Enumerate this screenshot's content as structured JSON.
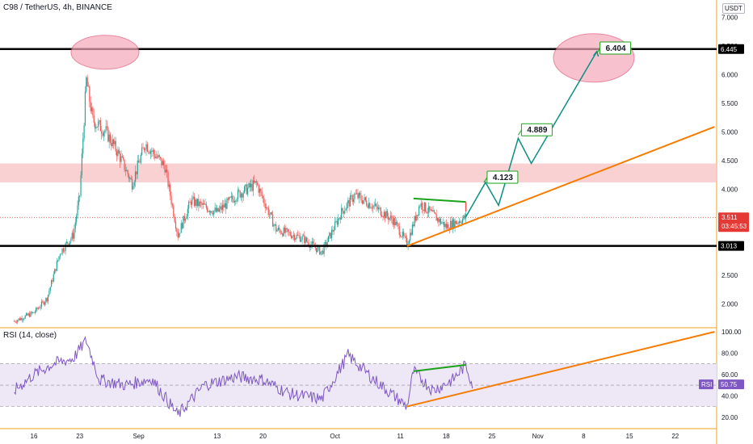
{
  "header": {
    "title": "C98 / TetherUS, 4h, BINANCE",
    "currency": "USDT"
  },
  "rsi": {
    "title": "RSI (14, close)",
    "badge_label": "RSI",
    "badge_value": "50.75"
  },
  "price_axis": {
    "ticks": [
      "7.000",
      "6.500",
      "6.000",
      "5.500",
      "5.000",
      "4.500",
      "4.000",
      "3.500",
      "3.000",
      "2.500",
      "2.000"
    ],
    "ylim": [
      1.6,
      7.3
    ]
  },
  "rsi_axis": {
    "ticks": [
      "100.00",
      "80.00",
      "60.00",
      "40.00",
      "20.00"
    ],
    "ylim": [
      10,
      103
    ]
  },
  "time_axis": {
    "labels": [
      "16",
      "23",
      "Sep",
      "13",
      "20",
      "Oct",
      "11",
      "18",
      "25",
      "Nov",
      "8",
      "15",
      "22"
    ]
  },
  "colors": {
    "up": "#26a69a",
    "down": "#ef5350",
    "level": "#000000",
    "trend": "#f57c00",
    "projection": "#0b8f83",
    "target": "#1ba21b",
    "zone": "#f8c6c8",
    "rsi_line": "#7e57c2",
    "rsi_band": "#ede7f6",
    "price_badge": "#e53935"
  },
  "chart_data": {
    "type": "candlestick",
    "title": "C98 / TetherUS, 4h, BINANCE",
    "price_levels": [
      {
        "label": "6.445",
        "value": 6.445
      },
      {
        "label": "3.013",
        "value": 3.013
      }
    ],
    "current_price": {
      "label": "3.511",
      "value": 3.511,
      "countdown": "03:45:53"
    },
    "resistance_zone": [
      4.12,
      4.45
    ],
    "projection_path": [
      {
        "x": "Oct 21",
        "y": 3.52
      },
      {
        "x": "Oct 24",
        "y": 4.12
      },
      {
        "x": "Oct 26",
        "y": 3.72
      },
      {
        "x": "Oct 29",
        "y": 4.89
      },
      {
        "x": "Oct 31",
        "y": 4.45
      },
      {
        "x": "Nov 10",
        "y": 6.4
      }
    ],
    "targets": [
      {
        "label": "4.123",
        "value": 4.123
      },
      {
        "label": "4.889",
        "value": 4.889
      },
      {
        "label": "6.404",
        "value": 6.404
      }
    ],
    "trendline": {
      "from": {
        "x": "Oct 12",
        "y": 3.01
      },
      "to": {
        "x": "Nov 28",
        "y": 5.09
      }
    },
    "divergence_line": {
      "from": {
        "x": "Oct 13",
        "y": 3.84
      },
      "to": {
        "x": "Oct 21",
        "y": 3.78
      }
    },
    "rsi_series": {
      "name": "RSI (14, close)",
      "overbought": 70,
      "oversold": 30,
      "last": 50.75,
      "divergence_line": {
        "from": 63,
        "to": 69
      },
      "trendline": {
        "from": {
          "x": "Oct 12",
          "y": 30
        },
        "to": {
          "x": "Nov 28",
          "y": 100
        }
      }
    },
    "price_path": [
      {
        "x": "Aug 13",
        "y": 1.7
      },
      {
        "x": "Aug 16",
        "y": 1.85
      },
      {
        "x": "Aug 18",
        "y": 2.1
      },
      {
        "x": "Aug 20",
        "y": 2.9
      },
      {
        "x": "Aug 22",
        "y": 3.2
      },
      {
        "x": "Aug 23",
        "y": 3.9
      },
      {
        "x": "Aug 24",
        "y": 5.9
      },
      {
        "x": "Aug 25",
        "y": 5.2
      },
      {
        "x": "Aug 27",
        "y": 5.0
      },
      {
        "x": "Aug 29",
        "y": 4.6
      },
      {
        "x": "Aug 31",
        "y": 4.1
      },
      {
        "x": "Sep 2",
        "y": 4.8
      },
      {
        "x": "Sep 5",
        "y": 4.4
      },
      {
        "x": "Sep 7",
        "y": 3.2
      },
      {
        "x": "Sep 9",
        "y": 3.8
      },
      {
        "x": "Sep 13",
        "y": 3.6
      },
      {
        "x": "Sep 16",
        "y": 3.9
      },
      {
        "x": "Sep 19",
        "y": 4.1
      },
      {
        "x": "Sep 22",
        "y": 3.3
      },
      {
        "x": "Sep 26",
        "y": 3.15
      },
      {
        "x": "Sep 29",
        "y": 2.9
      },
      {
        "x": "Oct 2",
        "y": 3.6
      },
      {
        "x": "Oct 4",
        "y": 3.9
      },
      {
        "x": "Oct 7",
        "y": 3.7
      },
      {
        "x": "Oct 10",
        "y": 3.45
      },
      {
        "x": "Oct 12",
        "y": 3.05
      },
      {
        "x": "Oct 14",
        "y": 3.75
      },
      {
        "x": "Oct 16",
        "y": 3.55
      },
      {
        "x": "Oct 18",
        "y": 3.35
      },
      {
        "x": "Oct 21",
        "y": 3.51
      }
    ],
    "rsi_path": [
      {
        "x": "Aug 13",
        "y": 45
      },
      {
        "x": "Aug 16",
        "y": 60
      },
      {
        "x": "Aug 19",
        "y": 70
      },
      {
        "x": "Aug 22",
        "y": 75
      },
      {
        "x": "Aug 24",
        "y": 92
      },
      {
        "x": "Aug 26",
        "y": 55
      },
      {
        "x": "Aug 30",
        "y": 50
      },
      {
        "x": "Sep 3",
        "y": 56
      },
      {
        "x": "Sep 7",
        "y": 22
      },
      {
        "x": "Sep 11",
        "y": 50
      },
      {
        "x": "Sep 16",
        "y": 58
      },
      {
        "x": "Sep 20",
        "y": 55
      },
      {
        "x": "Sep 24",
        "y": 42
      },
      {
        "x": "Sep 29",
        "y": 37
      },
      {
        "x": "Oct 3",
        "y": 78
      },
      {
        "x": "Oct 7",
        "y": 55
      },
      {
        "x": "Oct 12",
        "y": 30
      },
      {
        "x": "Oct 13",
        "y": 63
      },
      {
        "x": "Oct 16",
        "y": 45
      },
      {
        "x": "Oct 19",
        "y": 55
      },
      {
        "x": "Oct 21",
        "y": 69
      },
      {
        "x": "Oct 22",
        "y": 50.75
      }
    ]
  }
}
